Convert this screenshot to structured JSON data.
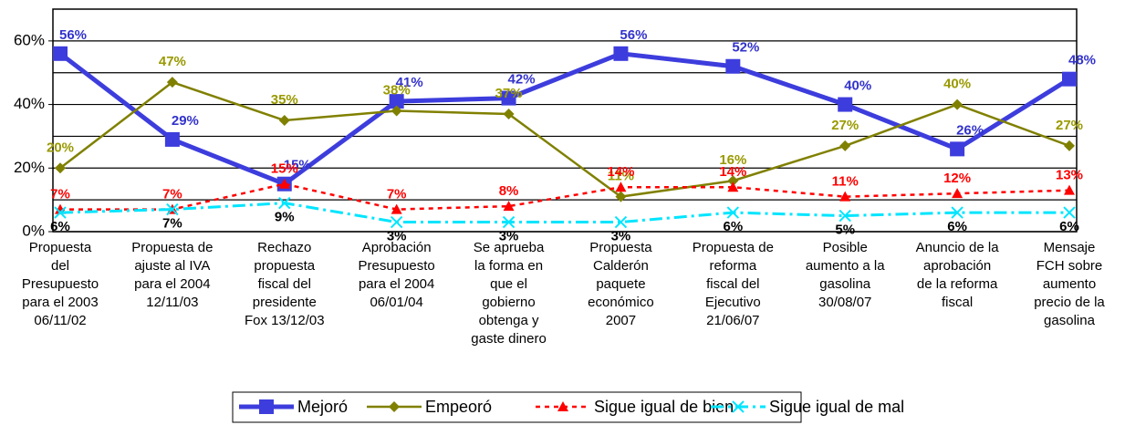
{
  "chart_data": {
    "type": "line",
    "categories": [
      "Propuesta\ndel\nPresupuesto\npara el 2003\n06/11/02",
      "Propuesta de\najuste al IVA\npara el 2004\n12/11/03",
      "Rechazo\npropuesta\nfiscal del\npresidente\nFox 13/12/03",
      "Aprobación\nPresupuesto\npara el 2004\n06/01/04",
      "Se aprueba\nla forma en\nque el\ngobierno\nobtenga y\ngaste dinero",
      "Propuesta\nCalderón\npaquete\neconómico\n2007",
      "Propuesta de\nreforma\nfiscal del\nEjecutivo\n21/06/07",
      "Posible\naumento a la\ngasolina\n30/08/07",
      "Anuncio de la\naprobación\nde la reforma\nfiscal",
      "Mensaje\nFCH sobre\naumento\nprecio de la\ngasolina"
    ],
    "series": [
      {
        "name": "Mejoró",
        "color": "#3d3ddd",
        "values": [
          56,
          29,
          15,
          41,
          42,
          56,
          52,
          40,
          26,
          48
        ],
        "value_labels": [
          "56%",
          "29%",
          "15%",
          "41%",
          "42%",
          "56%",
          "52%",
          "40%",
          "26%",
          "48%"
        ]
      },
      {
        "name": "Empeoró",
        "color": "#808000",
        "values": [
          20,
          47,
          35,
          38,
          37,
          11,
          16,
          27,
          40,
          27
        ],
        "value_labels": [
          "20%",
          "47%",
          "35%",
          "38%",
          "37%",
          "11%",
          "16%",
          "27%",
          "40%",
          "27%"
        ]
      },
      {
        "name": "Sigue igual de bien",
        "color": "#ff0000",
        "values": [
          7,
          7,
          15,
          7,
          8,
          14,
          14,
          11,
          12,
          13
        ],
        "value_labels": [
          "7%",
          "7%",
          "15%",
          "7%",
          "8%",
          "14%",
          "14%",
          "11%",
          "12%",
          "13%"
        ]
      },
      {
        "name": "Sigue igual de mal",
        "color": "#00e5ff",
        "values": [
          6,
          7,
          9,
          3,
          3,
          3,
          6,
          5,
          6,
          6
        ],
        "value_labels": [
          "6%",
          "7%",
          "9%",
          "3%",
          "3%",
          "3%",
          "6%",
          "5%",
          "6%",
          "6%"
        ]
      }
    ],
    "ylim": [
      0,
      70
    ],
    "yticks": [
      {
        "value": 0,
        "label": "0%"
      },
      {
        "value": 20,
        "label": "20%"
      },
      {
        "value": 40,
        "label": "40%"
      },
      {
        "value": 60,
        "label": "60%"
      }
    ],
    "minor_yticks": [
      10,
      30,
      50
    ],
    "grid": true,
    "legend": "bottom"
  }
}
